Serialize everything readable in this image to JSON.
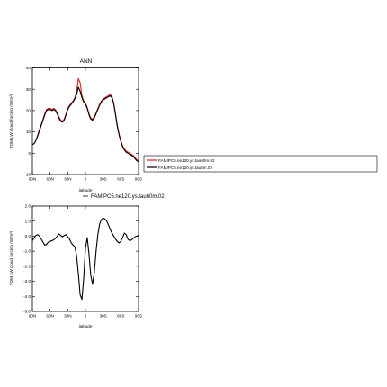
{
  "chart_data": [
    {
      "type": "line",
      "title": "ANN",
      "xlabel": "latitude",
      "ylabel": "TOM LW cloud forcing (W/m²)",
      "x_ticks": [
        "90N",
        "60N",
        "30N",
        "0",
        "30S",
        "60S",
        "90S"
      ],
      "x_tick_values": [
        90,
        60,
        30,
        0,
        -30,
        -60,
        -90
      ],
      "xlim": [
        90,
        -90
      ],
      "ylim": [
        -10,
        40
      ],
      "y_ticks": [
        "-10",
        "0",
        "10",
        "20",
        "30",
        "40"
      ],
      "y_tick_values": [
        -10,
        0,
        10,
        20,
        30,
        40
      ],
      "legend": "right",
      "grid": false,
      "x": [
        90,
        87,
        84,
        81,
        78,
        75,
        72,
        69,
        66,
        63,
        60,
        57,
        54,
        51,
        48,
        45,
        42,
        39,
        36,
        33,
        30,
        27,
        24,
        21,
        18,
        15,
        12,
        9,
        6,
        3,
        0,
        -3,
        -6,
        -9,
        -12,
        -15,
        -18,
        -21,
        -24,
        -27,
        -30,
        -33,
        -36,
        -39,
        -42,
        -45,
        -48,
        -51,
        -54,
        -57,
        -60,
        -63,
        -66,
        -69,
        -72,
        -75,
        -78,
        -81,
        -84,
        -87,
        -90
      ],
      "series": [
        {
          "name": "FAMIPC5.ne120.ys.tau60m.02",
          "color": "#d62020",
          "values": [
            4,
            4.5,
            6,
            8.5,
            11,
            13.5,
            16,
            18.5,
            20.5,
            21,
            21,
            20.5,
            21,
            20.5,
            19,
            17,
            15.5,
            15,
            16,
            18.5,
            21,
            22.5,
            23.5,
            24.5,
            26,
            29,
            35,
            33,
            27,
            24.5,
            23.5,
            21.5,
            18.5,
            16.5,
            16,
            17,
            19,
            21,
            23,
            24.5,
            25.5,
            26,
            26.5,
            27,
            27.5,
            26.5,
            23.5,
            18.5,
            13,
            9,
            6,
            3.5,
            2,
            1,
            0.5,
            0,
            -0.5,
            -1,
            -2,
            -3,
            -3.5
          ]
        },
        {
          "name": "FAMIPC5.ne120.ys.tau5m.02",
          "color": "#000000",
          "values": [
            4,
            4.5,
            6,
            8,
            10.5,
            13,
            15.5,
            18,
            20,
            20.5,
            20.5,
            20,
            20.5,
            20,
            18.5,
            16.5,
            15,
            14.5,
            15.5,
            18,
            20.5,
            22,
            23,
            24,
            25.5,
            27.5,
            31,
            29,
            26,
            24,
            23,
            21,
            18,
            16,
            15.5,
            16.5,
            18.5,
            20.5,
            22.5,
            24,
            25,
            25.5,
            26,
            26.5,
            27,
            26,
            23,
            18,
            12.5,
            8.5,
            5.5,
            3,
            1.5,
            0.5,
            0,
            -0.5,
            -1,
            -1.5,
            -2.5,
            -3.5,
            -4
          ]
        }
      ]
    },
    {
      "type": "line",
      "title": "",
      "xlabel": "latitude",
      "ylabel": "TOM LW cloud forcing (W/m²)",
      "x_ticks": [
        "90N",
        "60N",
        "30N",
        "0",
        "30S",
        "60S",
        "90S"
      ],
      "x_tick_values": [
        90,
        60,
        30,
        0,
        -30,
        -60,
        -90
      ],
      "xlim": [
        90,
        -90
      ],
      "ylim": [
        -5,
        2
      ],
      "y_ticks": [
        "-5.0",
        "-4.0",
        "-3.0",
        "-2.0",
        "-1.0",
        "0.0",
        "1.0",
        "2.0"
      ],
      "y_tick_values": [
        -5,
        -4,
        -3,
        -2,
        -1,
        0,
        1,
        2
      ],
      "legend": "top",
      "grid": false,
      "x": [
        90,
        87,
        84,
        81,
        78,
        75,
        72,
        69,
        66,
        63,
        60,
        57,
        54,
        51,
        48,
        45,
        42,
        39,
        36,
        33,
        30,
        27,
        24,
        21,
        18,
        15,
        12,
        9,
        6,
        3,
        0,
        -3,
        -6,
        -9,
        -12,
        -15,
        -18,
        -21,
        -24,
        -27,
        -30,
        -33,
        -36,
        -39,
        -42,
        -45,
        -48,
        -51,
        -54,
        -57,
        -60,
        -63,
        -66,
        -69,
        -72,
        -75,
        -78,
        -81,
        -84,
        -87,
        -90
      ],
      "series": [
        {
          "name": "FAMIPC5.ne120.ys.tau60m.02",
          "color": "#000000",
          "values": [
            -0.3,
            -0.1,
            0.05,
            0.1,
            0,
            -0.2,
            -0.4,
            -0.6,
            -0.55,
            -0.4,
            -0.35,
            -0.3,
            -0.25,
            -0.15,
            0,
            0.15,
            0.05,
            -0.05,
            0.05,
            0.1,
            -0.05,
            -0.2,
            -0.45,
            -0.6,
            -0.7,
            -1.3,
            -2.5,
            -3.9,
            -4.2,
            -2.8,
            -0.8,
            -0.1,
            -1.2,
            -2.6,
            -3.2,
            -2.4,
            -1.0,
            0.1,
            0.8,
            1.1,
            1.2,
            1.15,
            1.0,
            0.75,
            0.45,
            0.2,
            0,
            -0.2,
            -0.35,
            -0.45,
            -0.35,
            -0.1,
            0.2,
            0.1,
            -0.2,
            -0.3,
            -0.25,
            -0.15,
            -0.05,
            0,
            0.05
          ]
        }
      ]
    }
  ]
}
